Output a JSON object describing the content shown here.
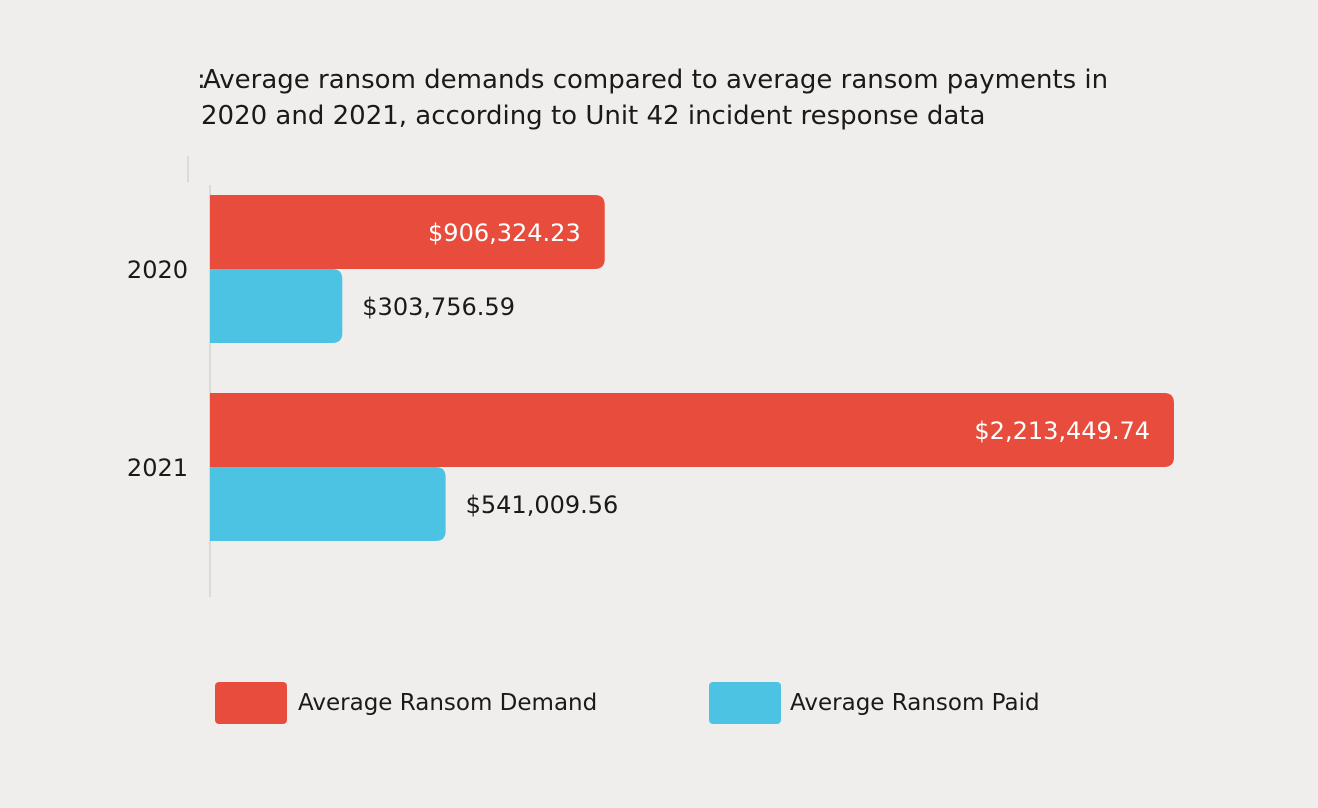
{
  "chart_data": {
    "type": "bar",
    "orientation": "horizontal",
    "title_lines": [
      "Average ransom demands compared to average ransom payments in",
      "2020 and 2021, according to Unit 42 incident response data"
    ],
    "title_prefix_glyph": ":",
    "categories": [
      "2020",
      "2021"
    ],
    "series": [
      {
        "name": "Average Ransom Demand",
        "color": "#e74c3c",
        "values": [
          906324.23,
          2213449.74
        ],
        "labels": [
          "$906,324.23",
          "$2,213,449.74"
        ],
        "label_position": "inside"
      },
      {
        "name": "Average Ransom Paid",
        "color": "#4cc3e3",
        "values": [
          303756.59,
          541009.56
        ],
        "labels": [
          "$303,756.59",
          "$541,009.56"
        ],
        "label_position": "outside"
      }
    ],
    "xlim": [
      0,
      2213449.74
    ],
    "legend_position": "bottom-center",
    "grid": false
  }
}
